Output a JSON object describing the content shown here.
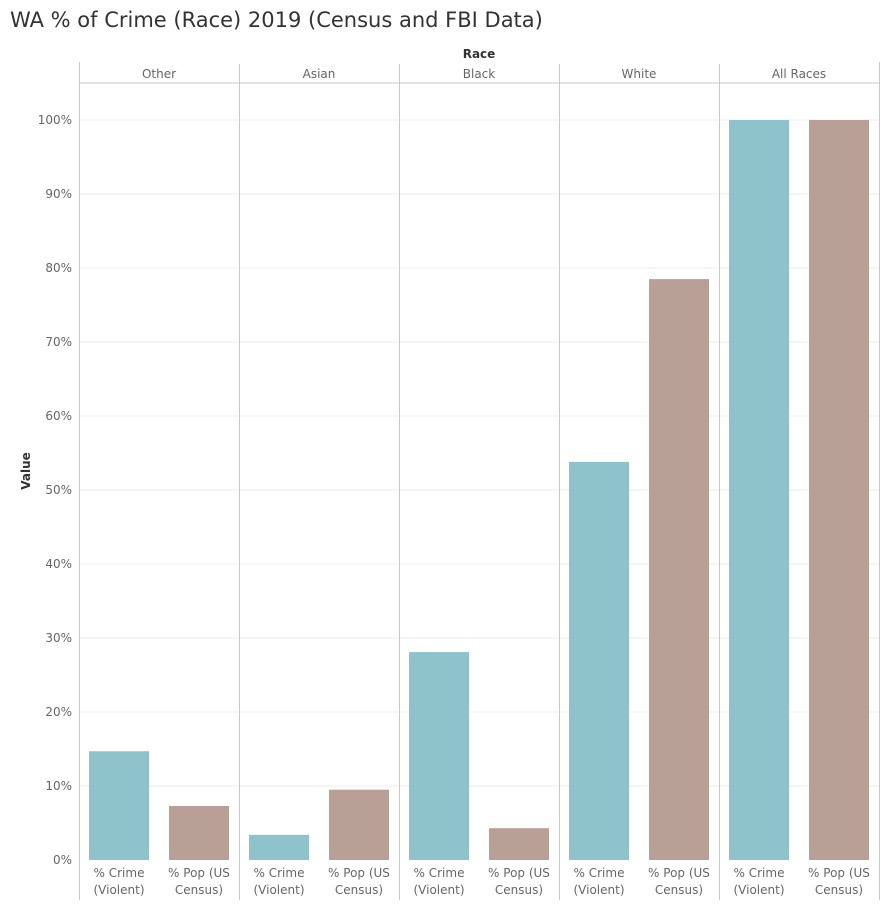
{
  "title": "WA % of Crime (Race) 2019 (Census and FBI Data)",
  "chart_data": {
    "type": "bar",
    "title": "WA % of Crime (Race) 2019 (Census and FBI Data)",
    "column_header": "Race",
    "ylabel": "Value",
    "ylim": [
      0,
      100
    ],
    "y_ticks": [
      "0%",
      "10%",
      "20%",
      "30%",
      "40%",
      "50%",
      "60%",
      "70%",
      "80%",
      "90%",
      "100%"
    ],
    "grid": true,
    "groups": [
      "Other",
      "Asian",
      "Black",
      "White",
      "All Races"
    ],
    "measures": [
      {
        "line1": "% Crime",
        "line2": "(Violent)"
      },
      {
        "line1": "% Pop (US",
        "line2": "Census)"
      }
    ],
    "colors": [
      "#8fc3cb",
      "#b9a097"
    ],
    "series": [
      {
        "values": [
          14.7,
          3.4,
          28.1,
          53.8,
          100
        ]
      },
      {
        "values": [
          7.3,
          9.5,
          4.3,
          78.5,
          100
        ]
      }
    ]
  }
}
